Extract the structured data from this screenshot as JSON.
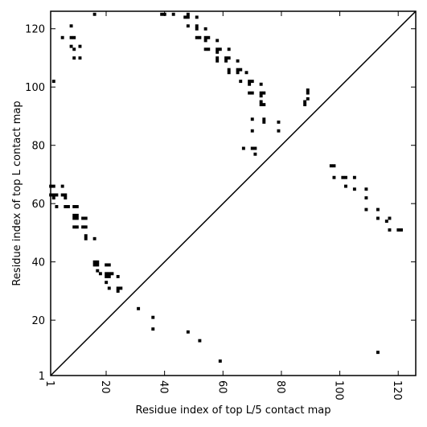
{
  "chart_data": {
    "type": "heatmap",
    "title": "",
    "xlabel": "Residue index of top L/5 contact map",
    "ylabel": "Residue index of top L contact map",
    "xlim": [
      1,
      126
    ],
    "ylim": [
      1,
      126
    ],
    "xticks": [
      1,
      20,
      40,
      60,
      80,
      100,
      120
    ],
    "yticks": [
      1,
      20,
      40,
      60,
      80,
      100,
      120
    ],
    "diagonal": true,
    "grid": false,
    "colors": {
      "contact": "#000000",
      "background": "#ffffff",
      "frame": "#000000"
    },
    "upper_contacts": [
      [
        8,
        121
      ],
      [
        16,
        125
      ],
      [
        5,
        117
      ],
      [
        8,
        117
      ],
      [
        9,
        117
      ],
      [
        8,
        114
      ],
      [
        9,
        113
      ],
      [
        11,
        114
      ],
      [
        9,
        110
      ],
      [
        11,
        110
      ],
      [
        2,
        102
      ],
      [
        39,
        125
      ],
      [
        40,
        125
      ],
      [
        43,
        125
      ],
      [
        47,
        124
      ],
      [
        48,
        125
      ],
      [
        48,
        124
      ],
      [
        51,
        124
      ],
      [
        48,
        121
      ],
      [
        51,
        121
      ],
      [
        51,
        120
      ],
      [
        54,
        120
      ],
      [
        51,
        117
      ],
      [
        52,
        117
      ],
      [
        54,
        117
      ],
      [
        55,
        117
      ],
      [
        54,
        116
      ],
      [
        58,
        116
      ],
      [
        54,
        113
      ],
      [
        55,
        113
      ],
      [
        58,
        113
      ],
      [
        59,
        113
      ],
      [
        62,
        113
      ],
      [
        58,
        112
      ],
      [
        61,
        110
      ],
      [
        62,
        110
      ],
      [
        58,
        109
      ],
      [
        58,
        110
      ],
      [
        61,
        109
      ],
      [
        65,
        109
      ],
      [
        62,
        106
      ],
      [
        62,
        105
      ],
      [
        65,
        106
      ],
      [
        66,
        106
      ],
      [
        65,
        105
      ],
      [
        68,
        105
      ],
      [
        66,
        102
      ],
      [
        69,
        102
      ],
      [
        70,
        102
      ],
      [
        73,
        101
      ],
      [
        69,
        101
      ],
      [
        69,
        98
      ],
      [
        70,
        98
      ],
      [
        73,
        98
      ],
      [
        74,
        98
      ],
      [
        73,
        97
      ],
      [
        73,
        95
      ],
      [
        74,
        94
      ],
      [
        73,
        94
      ],
      [
        70,
        89
      ],
      [
        74,
        89
      ],
      [
        74,
        88
      ],
      [
        70,
        85
      ],
      [
        79,
        88
      ],
      [
        79,
        85
      ],
      [
        67,
        79
      ],
      [
        70,
        79
      ],
      [
        71,
        79
      ],
      [
        71,
        77
      ],
      [
        88,
        95
      ],
      [
        88,
        94
      ],
      [
        89,
        96
      ],
      [
        89,
        99
      ],
      [
        89,
        98
      ]
    ],
    "lower_contacts": [
      [
        1,
        66
      ],
      [
        2,
        66
      ],
      [
        5,
        66
      ],
      [
        1,
        63
      ],
      [
        2,
        63
      ],
      [
        3,
        63
      ],
      [
        5,
        63
      ],
      [
        6,
        63
      ],
      [
        2,
        62
      ],
      [
        6,
        62
      ],
      [
        3,
        59
      ],
      [
        6,
        59
      ],
      [
        7,
        59
      ],
      [
        9,
        59
      ],
      [
        10,
        59
      ],
      [
        9,
        56
      ],
      [
        10,
        56
      ],
      [
        9,
        55
      ],
      [
        10,
        55
      ],
      [
        12,
        55
      ],
      [
        13,
        55
      ],
      [
        9,
        52
      ],
      [
        10,
        52
      ],
      [
        12,
        52
      ],
      [
        13,
        52
      ],
      [
        13,
        49
      ],
      [
        13,
        48
      ],
      [
        16,
        48
      ],
      [
        16,
        40
      ],
      [
        17,
        40
      ],
      [
        16,
        39
      ],
      [
        17,
        39
      ],
      [
        20,
        39
      ],
      [
        21,
        39
      ],
      [
        17,
        37
      ],
      [
        18,
        36
      ],
      [
        20,
        36
      ],
      [
        21,
        36
      ],
      [
        22,
        36
      ],
      [
        20,
        35
      ],
      [
        21,
        35
      ],
      [
        24,
        35
      ],
      [
        20,
        33
      ],
      [
        21,
        31
      ],
      [
        24,
        31
      ],
      [
        25,
        31
      ],
      [
        24,
        30
      ],
      [
        31,
        24
      ],
      [
        36,
        21
      ],
      [
        36,
        17
      ],
      [
        48,
        16
      ],
      [
        52,
        13
      ],
      [
        59,
        6
      ],
      [
        97,
        73
      ],
      [
        98,
        73
      ],
      [
        98,
        69
      ],
      [
        101,
        69
      ],
      [
        102,
        69
      ],
      [
        102,
        66
      ],
      [
        105,
        69
      ],
      [
        105,
        65
      ],
      [
        109,
        65
      ],
      [
        109,
        62
      ],
      [
        109,
        58
      ],
      [
        113,
        58
      ],
      [
        113,
        55
      ],
      [
        116,
        54
      ],
      [
        117,
        55
      ],
      [
        117,
        51
      ],
      [
        120,
        51
      ],
      [
        121,
        51
      ],
      [
        113,
        9
      ]
    ]
  }
}
